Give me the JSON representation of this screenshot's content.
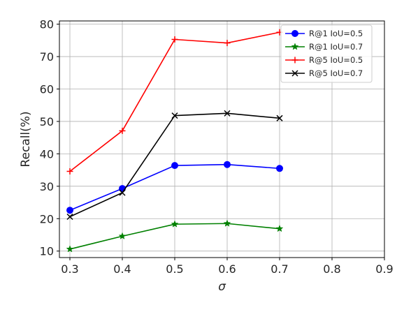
{
  "chart_data": {
    "type": "line",
    "xlabel": "σ",
    "ylabel": "Recall(%)",
    "xlim": [
      0.28,
      0.9
    ],
    "ylim": [
      8,
      81
    ],
    "xticks": [
      "0.3",
      "0.4",
      "0.5",
      "0.6",
      "0.7",
      "0.8",
      "0.9"
    ],
    "yticks": [
      "10",
      "20",
      "30",
      "40",
      "50",
      "60",
      "70",
      "80"
    ],
    "xtick_values": [
      0.3,
      0.4,
      0.5,
      0.6,
      0.7,
      0.8,
      0.9
    ],
    "ytick_values": [
      10,
      20,
      30,
      40,
      50,
      60,
      70,
      80
    ],
    "grid": true,
    "legend_position": "top-right",
    "x": [
      0.3,
      0.4,
      0.5,
      0.6,
      0.7
    ],
    "series": [
      {
        "name": "R@1 IoU=0.5",
        "color": "#0000ff",
        "marker": "circle",
        "values": [
          22.6,
          29.3,
          36.4,
          36.7,
          35.5
        ]
      },
      {
        "name": "R@1 IoU=0.7",
        "color": "#008000",
        "marker": "star",
        "values": [
          10.6,
          14.6,
          18.3,
          18.5,
          16.9
        ]
      },
      {
        "name": "R@5 IoU=0.5",
        "color": "#ff0000",
        "marker": "plus",
        "values": [
          34.6,
          47.1,
          75.3,
          74.2,
          77.5
        ]
      },
      {
        "name": "R@5 IoU=0.7",
        "color": "#000000",
        "marker": "x",
        "values": [
          20.6,
          28.0,
          51.8,
          52.5,
          51.0
        ]
      }
    ]
  }
}
